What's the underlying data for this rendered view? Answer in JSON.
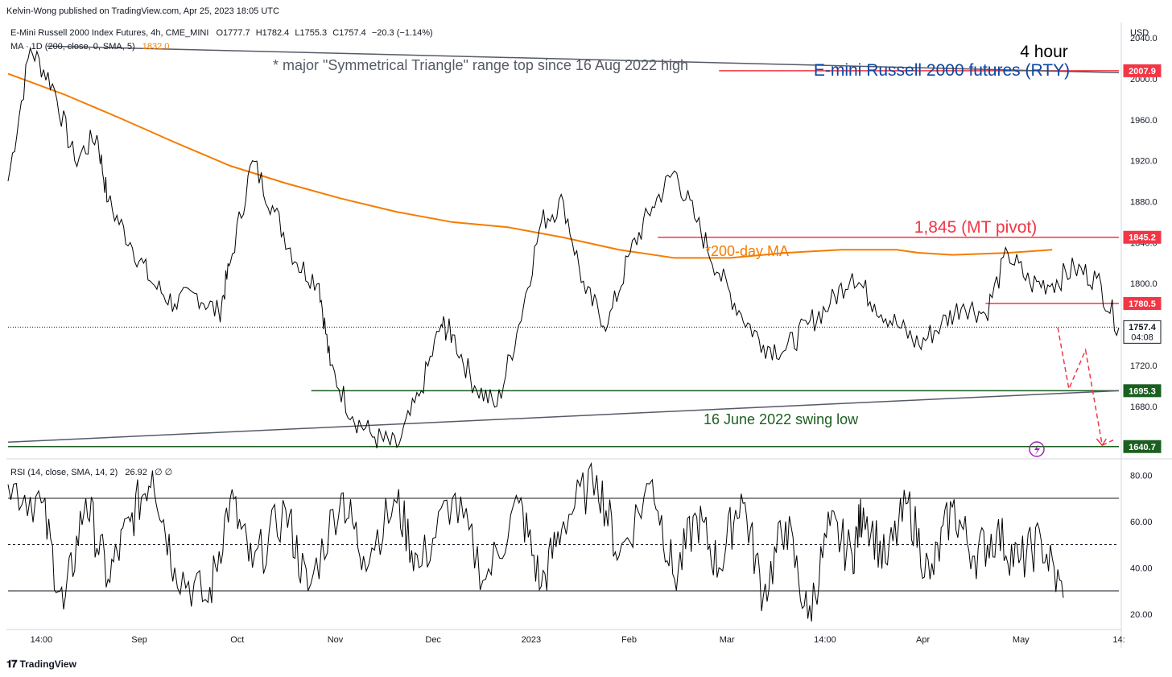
{
  "header": {
    "publisher": "Kelvin-Wong published on TradingView.com, Apr 25, 2023 18:05 UTC",
    "symbol_line": "E-Mini Russell 2000 Index Futures, 4h, CME_MINI",
    "ohlc": {
      "o": "O1777.7",
      "h": "H1782.4",
      "l": "L1755.3",
      "c": "C1757.4",
      "chg": "−20.3 (−1.14%)"
    },
    "ma_line": "MA · 1D (200, close, 0, SMA, 5)",
    "ma_value": "1832.0",
    "rsi_line": "RSI (14, close, SMA, 14, 2)",
    "rsi_value": "26.92",
    "rsi_extra": "∅ ∅"
  },
  "branding": {
    "logo_text": "TradingView"
  },
  "colors": {
    "price": "#000000",
    "ma": "#f57c00",
    "red": "#f23645",
    "green": "#1b5e20",
    "blue": "#0d47a1",
    "gray": "#555a66",
    "purple": "#9c27b0",
    "hline": "#131722"
  },
  "chart_data": [
    {
      "type": "line",
      "title": "E-mini Russell 2000 futures (RTY)",
      "timeframe_label": "4 hour",
      "currency": "USD",
      "x_ticks": [
        "14:00",
        "Sep",
        "Oct",
        "Nov",
        "Dec",
        "2023",
        "Feb",
        "Mar",
        "14:00",
        "Apr",
        "May",
        "14:"
      ],
      "y_ticks": [
        2040,
        2000,
        1960,
        1920,
        1880,
        1840,
        1800,
        1760,
        1720,
        1680
      ],
      "ylim": [
        1635,
        2055
      ],
      "series": [
        {
          "color": "#000000",
          "x": [
            0,
            2,
            4,
            6,
            8,
            9,
            11,
            13,
            15,
            17,
            19,
            20,
            22,
            24,
            26,
            28,
            29,
            31,
            33,
            35,
            37,
            39,
            40,
            42,
            44,
            46,
            48,
            50,
            52,
            54,
            56,
            58,
            60,
            62,
            64,
            66,
            68,
            70,
            72,
            74,
            76,
            78,
            80,
            82,
            84,
            86,
            88,
            90,
            92,
            94,
            96,
            98,
            100
          ],
          "values": [
            1900,
            2030,
            1995,
            1920,
            1945,
            1880,
            1840,
            1800,
            1780,
            1790,
            1770,
            1820,
            1920,
            1870,
            1820,
            1800,
            1720,
            1670,
            1650,
            1640,
            1690,
            1760,
            1750,
            1700,
            1680,
            1760,
            1860,
            1880,
            1790,
            1760,
            1830,
            1875,
            1910,
            1860,
            1810,
            1770,
            1740,
            1735,
            1760,
            1780,
            1810,
            1780,
            1760,
            1740,
            1760,
            1780,
            1770,
            1830,
            1800,
            1800,
            1815,
            1805,
            1757
          ]
        },
        {
          "name": "*200-day MA",
          "color": "#f57c00",
          "x": [
            0,
            5,
            10,
            15,
            20,
            25,
            30,
            35,
            40,
            45,
            50,
            55,
            60,
            65,
            70,
            75,
            80,
            82,
            85,
            90,
            94
          ],
          "values": [
            2005,
            1985,
            1962,
            1938,
            1915,
            1898,
            1883,
            1870,
            1860,
            1855,
            1845,
            1833,
            1825,
            1825,
            1830,
            1833,
            1833,
            1830,
            1828,
            1830,
            1833
          ]
        }
      ],
      "horizontal_levels": [
        {
          "value": 2007.9,
          "label": "2007.9",
          "color": "#f23645"
        },
        {
          "value": 1845.2,
          "label": "1845.2",
          "color": "#f23645"
        },
        {
          "value": 1780.5,
          "label": "1780.5",
          "color": "#f23645"
        },
        {
          "value": 1757.4,
          "label": "1757.4",
          "sublabel": "04:08",
          "color": "#131722"
        },
        {
          "value": 1695.3,
          "label": "1695.3",
          "color": "#1b5e20"
        },
        {
          "value": 1640.7,
          "label": "1640.7",
          "color": "#1b5e20"
        }
      ],
      "annotations": [
        {
          "text": "* major \"Symmetrical Triangle\" range top since 16 Aug 2022 high",
          "color": "#555a66"
        },
        {
          "text": "1,845 (MT pivot)",
          "color": "#f23645"
        },
        {
          "text": "*200-day MA",
          "color": "#f57c00"
        },
        {
          "text": "16 June 2022 swing low",
          "color": "#1b5e20"
        }
      ],
      "projection": {
        "x": [
          94.5,
          95.5,
          97.0,
          98.5,
          99.5
        ],
        "values": [
          1757,
          1697,
          1735,
          1642,
          1647
        ]
      }
    },
    {
      "type": "line",
      "title": "",
      "y_ticks": [
        80.0,
        60.0,
        40.0,
        20.0
      ],
      "ylim": [
        14,
        86
      ],
      "bands": [
        70,
        50,
        30
      ],
      "series": [
        {
          "color": "#000000",
          "x": [
            0,
            3,
            5,
            7,
            9,
            11,
            13,
            15,
            18,
            20,
            22,
            25,
            27,
            30,
            32,
            35,
            37,
            40,
            43,
            46,
            48,
            50,
            53,
            55,
            58,
            60,
            62,
            64,
            66,
            68,
            70,
            72,
            74,
            76,
            77,
            79,
            81,
            83,
            85,
            87,
            89,
            91,
            93,
            95
          ],
          "values": [
            76,
            68,
            22,
            70,
            35,
            60,
            82,
            40,
            25,
            70,
            40,
            65,
            30,
            72,
            45,
            68,
            40,
            70,
            35,
            68,
            32,
            60,
            80,
            45,
            78,
            35,
            62,
            40,
            72,
            28,
            60,
            18,
            58,
            45,
            66,
            42,
            68,
            35,
            66,
            45,
            55,
            42,
            52,
            27
          ]
        }
      ]
    }
  ]
}
